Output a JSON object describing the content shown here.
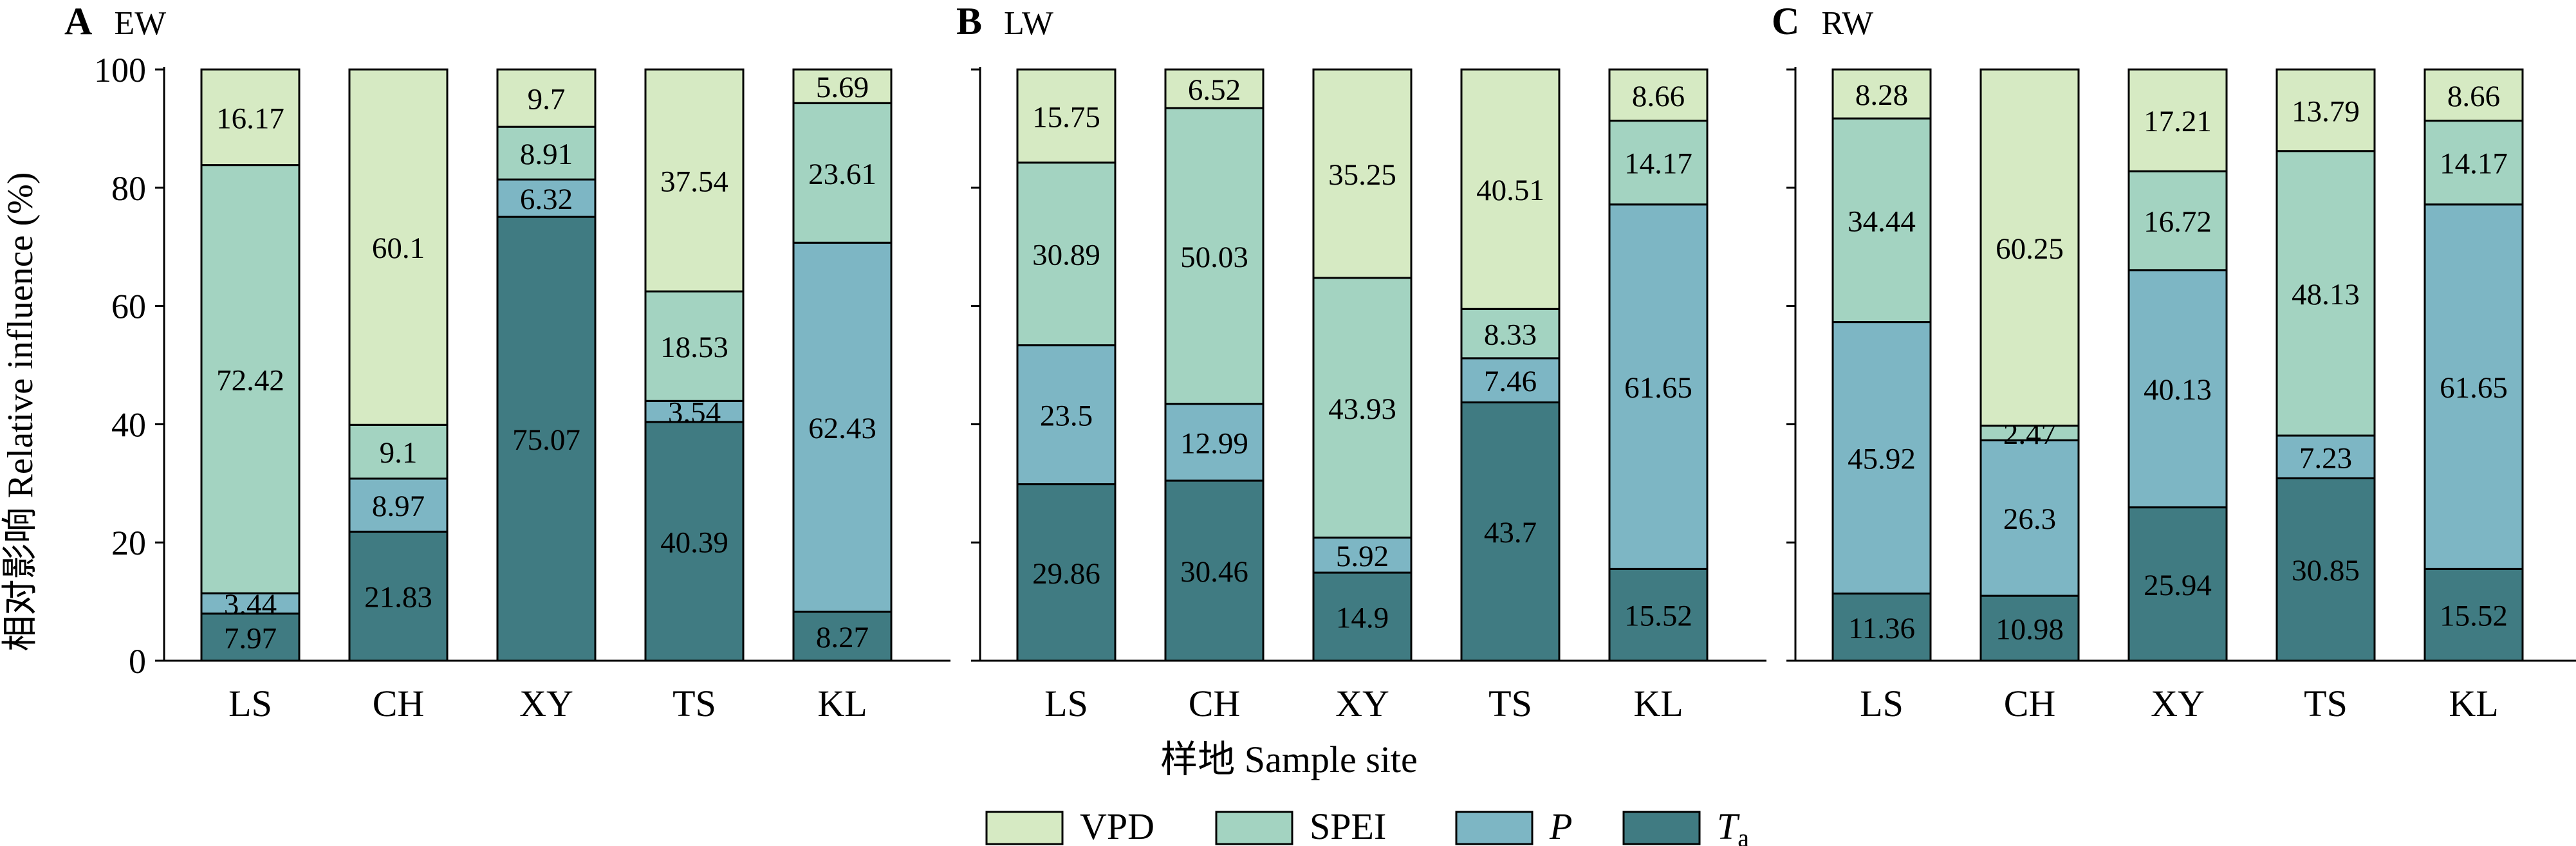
{
  "figure": {
    "y_axis_label": "相对影响 Relative influence (%)",
    "x_axis_label": "样地 Sample site"
  },
  "colors": {
    "VPD": "#d6eac3",
    "SPEI": "#a3d3c1",
    "P": "#7db6c4",
    "Ta": "#407b82",
    "stroke": "#000000"
  },
  "legend": [
    {
      "key": "VPD",
      "label": "VPD",
      "subscript": ""
    },
    {
      "key": "SPEI",
      "label": "SPEI",
      "subscript": ""
    },
    {
      "key": "P",
      "label": "P",
      "subscript": ""
    },
    {
      "key": "Ta",
      "label": "T",
      "subscript": "a"
    }
  ],
  "chart_data": [
    {
      "type": "bar",
      "stacked": true,
      "panel_letter": "A",
      "title": "EW",
      "categories": [
        "LS",
        "CH",
        "XY",
        "TS",
        "KL"
      ],
      "ylim": [
        0,
        100
      ],
      "yticks": [
        0,
        20,
        40,
        60,
        80,
        100
      ],
      "series": [
        {
          "name": "Ta",
          "key": "Ta",
          "values": [
            7.97,
            21.83,
            75.07,
            40.39,
            8.27
          ]
        },
        {
          "name": "P",
          "key": "P",
          "values": [
            3.44,
            8.97,
            6.32,
            3.54,
            62.43
          ]
        },
        {
          "name": "SPEI",
          "key": "SPEI",
          "values": [
            72.42,
            9.1,
            8.91,
            18.53,
            23.61
          ]
        },
        {
          "name": "VPD",
          "key": "VPD",
          "values": [
            16.17,
            60.1,
            9.7,
            37.54,
            5.69
          ]
        }
      ]
    },
    {
      "type": "bar",
      "stacked": true,
      "panel_letter": "B",
      "title": "LW",
      "categories": [
        "LS",
        "CH",
        "XY",
        "TS",
        "KL"
      ],
      "ylim": [
        0,
        100
      ],
      "yticks": [
        0,
        20,
        40,
        60,
        80,
        100
      ],
      "series": [
        {
          "name": "Ta",
          "key": "Ta",
          "values": [
            29.86,
            30.46,
            14.9,
            43.7,
            15.52
          ]
        },
        {
          "name": "P",
          "key": "P",
          "values": [
            23.5,
            12.99,
            5.92,
            7.46,
            61.65
          ]
        },
        {
          "name": "SPEI",
          "key": "SPEI",
          "values": [
            30.89,
            50.03,
            43.93,
            8.33,
            14.17
          ]
        },
        {
          "name": "VPD",
          "key": "VPD",
          "values": [
            15.75,
            6.52,
            35.25,
            40.51,
            8.66
          ]
        }
      ]
    },
    {
      "type": "bar",
      "stacked": true,
      "panel_letter": "C",
      "title": "RW",
      "categories": [
        "LS",
        "CH",
        "XY",
        "TS",
        "KL"
      ],
      "ylim": [
        0,
        100
      ],
      "yticks": [
        0,
        20,
        40,
        60,
        80,
        100
      ],
      "series": [
        {
          "name": "Ta",
          "key": "Ta",
          "values": [
            11.36,
            10.98,
            25.94,
            30.85,
            15.52
          ]
        },
        {
          "name": "P",
          "key": "P",
          "values": [
            45.92,
            26.3,
            40.13,
            7.23,
            61.65
          ]
        },
        {
          "name": "SPEI",
          "key": "SPEI",
          "values": [
            34.44,
            2.47,
            16.72,
            48.13,
            14.17
          ]
        },
        {
          "name": "VPD",
          "key": "VPD",
          "values": [
            8.28,
            60.25,
            17.21,
            13.79,
            8.66
          ]
        }
      ]
    }
  ]
}
